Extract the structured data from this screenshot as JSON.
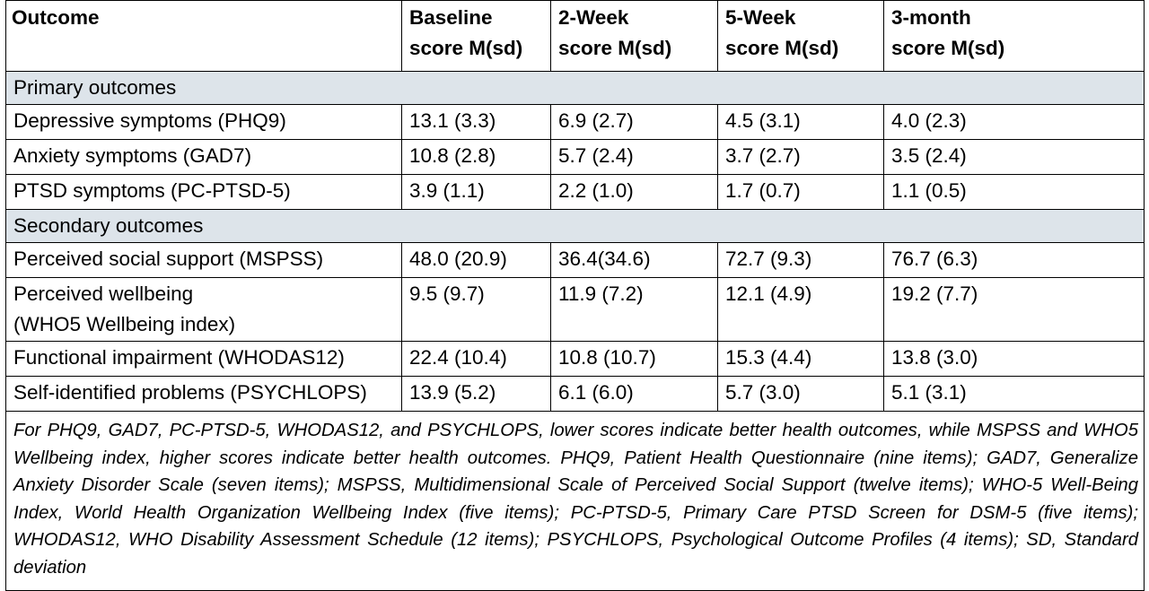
{
  "table": {
    "header": {
      "outcome": "Outcome",
      "baseline_line1": "Baseline",
      "baseline_line2": "score M(sd)",
      "week2_line1": "2-Week",
      "week2_line2": "score M(sd)",
      "week5_line1": "5-Week",
      "week5_line2": "score M(sd)",
      "month3_line1": "3-month",
      "month3_line2": "score M(sd)"
    },
    "primary_section": {
      "label": "Primary outcomes",
      "rows": [
        {
          "outcome": "Depressive symptoms (PHQ9)",
          "baseline": "13.1 (3.3)",
          "week2": "6.9 (2.7)",
          "week5": "4.5 (3.1)",
          "month3": "4.0 (2.3)"
        },
        {
          "outcome": "Anxiety symptoms (GAD7)",
          "baseline": "10.8 (2.8)",
          "week2": "5.7 (2.4)",
          "week5": "3.7 (2.7)",
          "month3": "3.5 (2.4)"
        },
        {
          "outcome": "PTSD symptoms (PC-PTSD-5)",
          "baseline": "3.9 (1.1)",
          "week2": "2.2 (1.0)",
          "week5": "1.7 (0.7)",
          "month3": "1.1 (0.5)"
        }
      ]
    },
    "secondary_section": {
      "label": "Secondary outcomes",
      "rows": [
        {
          "outcome": "Perceived social support (MSPSS)",
          "baseline": "48.0 (20.9)",
          "week2": "36.4(34.6)",
          "week5": "72.7 (9.3)",
          "month3": "76.7 (6.3)"
        },
        {
          "outcome_line1": "Perceived wellbeing",
          "outcome_line2": "(WHO5 Wellbeing index)",
          "baseline": "9.5 (9.7)",
          "week2": "11.9 (7.2)",
          "week5": "12.1 (4.9)",
          "month3": "19.2 (7.7)"
        },
        {
          "outcome": "Functional impairment (WHODAS12)",
          "baseline": "22.4 (10.4)",
          "week2": "10.8 (10.7)",
          "week5": "15.3 (4.4)",
          "month3": "13.8 (3.0)"
        },
        {
          "outcome": "Self-identified problems (PSYCHLOPS)",
          "baseline": "13.9 (5.2)",
          "week2": "6.1 (6.0)",
          "week5": "5.7 (3.0)",
          "month3": "5.1 (3.1)"
        }
      ]
    },
    "footnote": "For PHQ9, GAD7, PC-PTSD-5, WHODAS12, and PSYCHLOPS, lower scores indicate better health outcomes, while MSPSS and WHO5 Wellbeing index, higher scores indicate better health outcomes. PHQ9, Patient Health Questionnaire (nine items); GAD7, Generalize Anxiety Disorder Scale (seven items); MSPSS, Multidimensional Scale of Perceived Social Support (twelve items); WHO-5 Well-Being Index, World Health Organization Wellbeing Index (five items); PC-PTSD-5, Primary Care PTSD Screen for DSM-5 (five items);  WHODAS12, WHO Disability Assessment Schedule (12 items); PSYCHLOPS, Psychological Outcome Profiles (4 items); SD, Standard deviation"
  },
  "colors": {
    "section_band": "#dde4ea",
    "rule": "#000000"
  }
}
